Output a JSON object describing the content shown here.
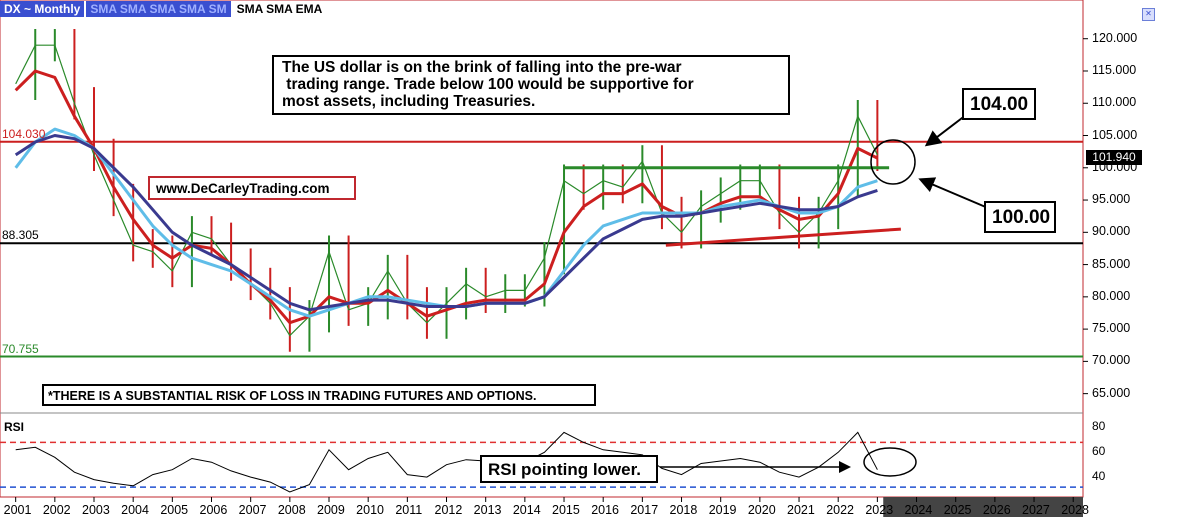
{
  "header": {
    "symbol": "DX ~ Monthly",
    "studies_dropdown": "SMA SMA SMA SMA SM",
    "studies": "SMA SMA EMA"
  },
  "annotations": {
    "note_lines": [
      "The US dollar is on the brink of falling into the pre-war",
      " trading range. Trade below 100 would be supportive for",
      "most assets, including Treasuries."
    ],
    "website": "www.DeCarleyTrading.com",
    "disclaimer": "*THERE IS A SUBSTANTIAL RISK OF LOSS IN TRADING FUTURES AND OPTIONS.",
    "callout_104": "104.00",
    "callout_100": "100.00",
    "rsi_note": "RSI pointing lower."
  },
  "chart_data": [
    {
      "type": "line",
      "title": "DX ~ Monthly",
      "ylim": [
        62.0,
        126.0
      ],
      "y_ticks": [
        "120.000",
        "115.000",
        "110.000",
        "105.000",
        "100.000",
        "95.000",
        "90.000",
        "85.000",
        "80.000",
        "75.000",
        "70.000",
        "65.000"
      ],
      "x_ticks": [
        "2001",
        "2002",
        "2003",
        "2004",
        "2005",
        "2006",
        "2007",
        "2008",
        "2009",
        "2010",
        "2011",
        "2012",
        "2013",
        "2014",
        "2015",
        "2016",
        "2017",
        "2018",
        "2019",
        "2020",
        "2021",
        "2022",
        "2023",
        "2024",
        "2025",
        "2026",
        "2027",
        "2028"
      ],
      "x": [
        2001.0,
        2001.5,
        2002.0,
        2002.5,
        2003.0,
        2003.5,
        2004.0,
        2004.5,
        2005.0,
        2005.5,
        2006.0,
        2006.5,
        2007.0,
        2007.5,
        2008.0,
        2008.5,
        2009.0,
        2009.5,
        2010.0,
        2010.5,
        2011.0,
        2011.5,
        2012.0,
        2012.5,
        2013.0,
        2013.5,
        2014.0,
        2014.5,
        2015.0,
        2015.5,
        2016.0,
        2016.5,
        2017.0,
        2017.5,
        2018.0,
        2018.5,
        2019.0,
        2019.5,
        2020.0,
        2020.5,
        2021.0,
        2021.5,
        2022.0,
        2022.5,
        2023.0
      ],
      "series": [
        {
          "values": [
            113.0,
            119.0,
            119.0,
            110.0,
            102.0,
            95.0,
            88.0,
            87.0,
            84.0,
            90.0,
            89.0,
            85.0,
            82.0,
            79.0,
            74.0,
            77.0,
            87.0,
            78.0,
            79.0,
            84.0,
            79.0,
            76.0,
            79.0,
            82.0,
            80.0,
            81.0,
            81.0,
            86.0,
            98.0,
            96.0,
            98.0,
            97.0,
            101.0,
            93.0,
            90.0,
            94.0,
            96.0,
            98.0,
            98.0,
            93.0,
            90.0,
            93.0,
            98.0,
            108.0,
            102.0
          ],
          "color": "#2a8a2a"
        },
        {
          "values": [
            112.0,
            115.0,
            114.0,
            108.0,
            103.0,
            97.0,
            92.0,
            88.0,
            86.0,
            88.0,
            87.5,
            85.0,
            82.0,
            79.5,
            76.0,
            77.0,
            80.0,
            79.0,
            79.0,
            81.0,
            79.0,
            77.0,
            78.0,
            79.0,
            79.5,
            79.5,
            79.5,
            82.0,
            90.0,
            94.0,
            96.0,
            96.0,
            97.5,
            94.0,
            92.5,
            93.0,
            94.5,
            95.5,
            95.5,
            93.5,
            92.0,
            92.5,
            96.0,
            103.0,
            101.5
          ],
          "color": "#cc1f1f"
        },
        {
          "values": [
            100.0,
            104.0,
            106.0,
            105.0,
            103.0,
            99.0,
            95.0,
            91.0,
            88.0,
            86.0,
            85.0,
            84.0,
            82.0,
            80.0,
            78.0,
            77.0,
            78.0,
            79.0,
            80.0,
            80.0,
            79.5,
            79.0,
            78.5,
            78.5,
            79.0,
            79.0,
            79.0,
            80.0,
            84.0,
            88.0,
            91.0,
            92.0,
            93.0,
            93.0,
            93.0,
            93.0,
            94.0,
            94.5,
            95.0,
            94.0,
            93.0,
            93.0,
            94.0,
            97.0,
            98.0
          ],
          "color": "#5fbde8"
        },
        {
          "values": [
            102.0,
            104.0,
            105.0,
            104.5,
            103.0,
            100.0,
            97.0,
            93.5,
            90.0,
            88.0,
            86.5,
            85.0,
            83.0,
            81.0,
            79.0,
            78.0,
            78.5,
            79.0,
            79.5,
            79.5,
            79.0,
            78.5,
            78.5,
            78.5,
            79.0,
            79.0,
            79.0,
            80.0,
            83.0,
            86.0,
            89.0,
            90.5,
            92.0,
            92.5,
            92.5,
            93.0,
            93.5,
            94.0,
            94.5,
            94.0,
            93.5,
            93.5,
            94.0,
            95.5,
            96.5
          ],
          "color": "#3a3a8f"
        }
      ],
      "hlines": [
        {
          "value": 104.03,
          "label": "104.030",
          "color": "#cc1f1f"
        },
        {
          "value": 88.305,
          "label": "88.305",
          "color": "#000000"
        },
        {
          "value": 70.755,
          "label": "70.755",
          "color": "#2a8a2a"
        }
      ],
      "trendlines": [
        {
          "x": [
            2015.0,
            2023.3
          ],
          "y": [
            100.0,
            100.0
          ],
          "color": "#2a8a2a"
        },
        {
          "x": [
            2017.6,
            2023.6
          ],
          "y": [
            88.0,
            90.5
          ],
          "color": "#cc1f1f"
        }
      ],
      "last_value": "101.940"
    },
    {
      "type": "line",
      "title": "RSI",
      "ylim": [
        24.0,
        86.0
      ],
      "y_ticks": [
        "80",
        "60",
        "40"
      ],
      "x": [
        2001.0,
        2001.5,
        2002.0,
        2002.5,
        2003.0,
        2003.5,
        2004.0,
        2004.5,
        2005.0,
        2005.5,
        2006.0,
        2006.5,
        2007.0,
        2007.5,
        2008.0,
        2008.5,
        2009.0,
        2009.5,
        2010.0,
        2010.5,
        2011.0,
        2011.5,
        2012.0,
        2012.5,
        2013.0,
        2013.5,
        2014.0,
        2014.5,
        2015.0,
        2015.5,
        2016.0,
        2016.5,
        2017.0,
        2017.5,
        2018.0,
        2018.5,
        2019.0,
        2019.5,
        2020.0,
        2020.5,
        2021.0,
        2021.5,
        2022.0,
        2022.5,
        2023.0
      ],
      "values": [
        62.0,
        64.0,
        56.0,
        44.0,
        38.0,
        35.0,
        33.0,
        42.0,
        46.0,
        55.0,
        52.0,
        45.0,
        40.0,
        36.0,
        28.0,
        34.0,
        62.0,
        46.0,
        55.0,
        60.0,
        42.0,
        40.0,
        50.0,
        54.0,
        53.0,
        51.0,
        52.0,
        60.0,
        76.0,
        68.0,
        62.0,
        60.0,
        58.0,
        47.0,
        42.0,
        51.0,
        53.0,
        55.0,
        52.0,
        44.0,
        40.0,
        48.0,
        60.0,
        76.0,
        46.0
      ],
      "hlines": [
        {
          "value": 68,
          "color": "#e03030"
        },
        {
          "value": 32,
          "color": "#2050d0"
        }
      ]
    }
  ]
}
